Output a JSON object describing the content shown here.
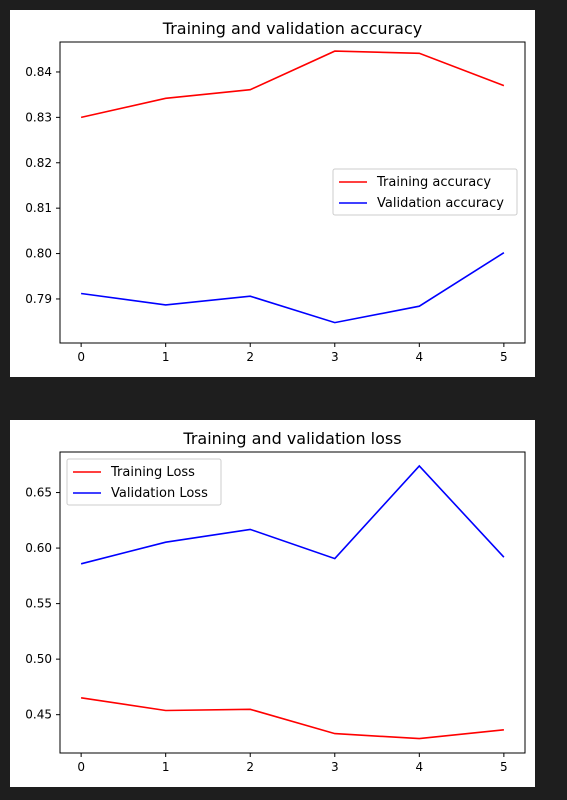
{
  "chart_data": [
    {
      "type": "line",
      "title": "Training and validation accuracy",
      "xlabel": "",
      "ylabel": "",
      "x": [
        0,
        1,
        2,
        3,
        4,
        5
      ],
      "xlim": [
        -0.25,
        5.25
      ],
      "ylim": [
        0.7803,
        0.8466
      ],
      "xticks": [
        "0",
        "1",
        "2",
        "3",
        "4",
        "5"
      ],
      "yticks": [
        0.79,
        0.8,
        0.81,
        0.82,
        0.83,
        0.84
      ],
      "ytick_labels": [
        "0.79",
        "0.80",
        "0.81",
        "0.82",
        "0.83",
        "0.84"
      ],
      "legend_position": "center-right",
      "grid": false,
      "series": [
        {
          "name": "Training accuracy",
          "color": "#ff0000",
          "values": [
            0.83,
            0.8342,
            0.8361,
            0.8446,
            0.8441,
            0.837
          ]
        },
        {
          "name": "Validation accuracy",
          "color": "#0000ff",
          "values": [
            0.7912,
            0.7887,
            0.7906,
            0.7848,
            0.7884,
            0.8002
          ]
        }
      ]
    },
    {
      "type": "line",
      "title": "Training and validation loss",
      "xlabel": "",
      "ylabel": "",
      "x": [
        0,
        1,
        2,
        3,
        4,
        5
      ],
      "xlim": [
        -0.25,
        5.25
      ],
      "ylim": [
        0.4155,
        0.6865
      ],
      "xticks": [
        "0",
        "1",
        "2",
        "3",
        "4",
        "5"
      ],
      "yticks": [
        0.45,
        0.5,
        0.55,
        0.6,
        0.65
      ],
      "ytick_labels": [
        "0.45",
        "0.50",
        "0.55",
        "0.60",
        "0.65"
      ],
      "legend_position": "upper-left",
      "grid": false,
      "series": [
        {
          "name": "Training Loss",
          "color": "#ff0000",
          "values": [
            0.4652,
            0.4538,
            0.4548,
            0.433,
            0.4285,
            0.4364
          ]
        },
        {
          "name": "Validation Loss",
          "color": "#0000ff",
          "values": [
            0.5858,
            0.6053,
            0.6168,
            0.5905,
            0.674,
            0.5918
          ]
        }
      ]
    }
  ]
}
